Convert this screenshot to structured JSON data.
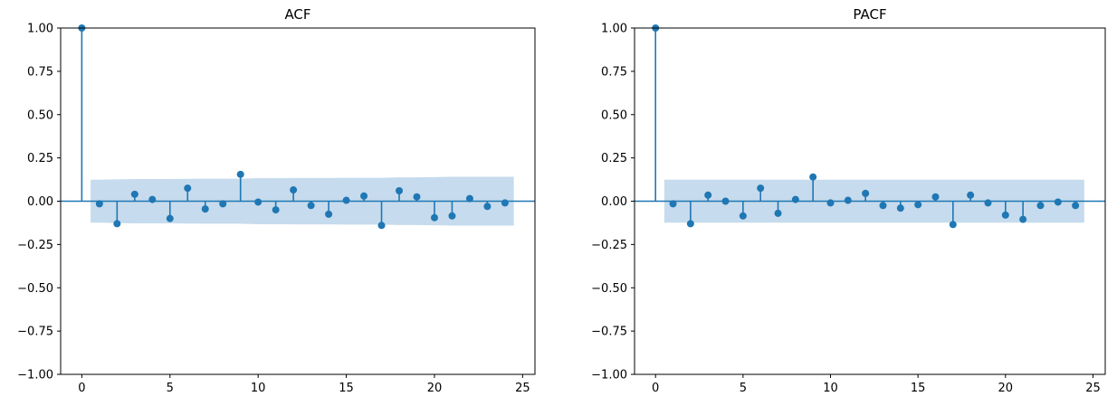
{
  "chart_data": [
    {
      "type": "stem",
      "title": "ACF",
      "xlabel": "",
      "ylabel": "",
      "xlim": [
        -1.2,
        25.7
      ],
      "ylim": [
        -1.0,
        1.0
      ],
      "xticks": [
        0,
        5,
        10,
        15,
        20,
        25
      ],
      "yticks": [
        -1.0,
        -0.75,
        -0.5,
        -0.25,
        0.0,
        0.25,
        0.5,
        0.75,
        1.0
      ],
      "ytick_labels": [
        "−1.00",
        "−0.75",
        "−0.50",
        "−0.25",
        "0.00",
        "0.25",
        "0.50",
        "0.75",
        "1.00"
      ],
      "xtick_labels": [
        "0",
        "5",
        "10",
        "15",
        "20",
        "25"
      ],
      "grid": false,
      "x": [
        0,
        1,
        2,
        3,
        4,
        5,
        6,
        7,
        8,
        9,
        10,
        11,
        12,
        13,
        14,
        15,
        16,
        17,
        18,
        19,
        20,
        21,
        22,
        23,
        24
      ],
      "values": [
        1.0,
        -0.015,
        -0.13,
        0.04,
        0.01,
        -0.1,
        0.075,
        -0.045,
        -0.015,
        0.155,
        -0.005,
        -0.05,
        0.065,
        -0.025,
        -0.075,
        0.005,
        0.03,
        -0.14,
        0.06,
        0.025,
        -0.095,
        -0.085,
        0.015,
        -0.03,
        -0.01
      ],
      "confidence_band": {
        "x": [
          0.5,
          1,
          2,
          3,
          4,
          5,
          6,
          7,
          8,
          9,
          10,
          11,
          12,
          13,
          14,
          15,
          16,
          17,
          18,
          19,
          20,
          21,
          22,
          23,
          24,
          24.5
        ],
        "upper": [
          0.124,
          0.124,
          0.126,
          0.128,
          0.128,
          0.128,
          0.129,
          0.13,
          0.13,
          0.13,
          0.133,
          0.133,
          0.134,
          0.134,
          0.134,
          0.135,
          0.135,
          0.135,
          0.138,
          0.138,
          0.139,
          0.141,
          0.141,
          0.141,
          0.141,
          0.141
        ],
        "lower": [
          -0.124,
          -0.124,
          -0.126,
          -0.128,
          -0.128,
          -0.128,
          -0.129,
          -0.13,
          -0.13,
          -0.13,
          -0.133,
          -0.133,
          -0.134,
          -0.134,
          -0.134,
          -0.135,
          -0.135,
          -0.135,
          -0.138,
          -0.138,
          -0.139,
          -0.141,
          -0.141,
          -0.141,
          -0.141,
          -0.141
        ]
      },
      "colors": {
        "stem": "#1f77b4",
        "band": "#c6dbed"
      }
    },
    {
      "type": "stem",
      "title": "PACF",
      "xlabel": "",
      "ylabel": "",
      "xlim": [
        -1.2,
        25.7
      ],
      "ylim": [
        -1.0,
        1.0
      ],
      "xticks": [
        0,
        5,
        10,
        15,
        20,
        25
      ],
      "yticks": [
        -1.0,
        -0.75,
        -0.5,
        -0.25,
        0.0,
        0.25,
        0.5,
        0.75,
        1.0
      ],
      "ytick_labels": [
        "−1.00",
        "−0.75",
        "−0.50",
        "−0.25",
        "0.00",
        "0.25",
        "0.50",
        "0.75",
        "1.00"
      ],
      "xtick_labels": [
        "0",
        "5",
        "10",
        "15",
        "20",
        "25"
      ],
      "grid": false,
      "x": [
        0,
        1,
        2,
        3,
        4,
        5,
        6,
        7,
        8,
        9,
        10,
        11,
        12,
        13,
        14,
        15,
        16,
        17,
        18,
        19,
        20,
        21,
        22,
        23,
        24
      ],
      "values": [
        1.0,
        -0.015,
        -0.13,
        0.035,
        0.0,
        -0.085,
        0.075,
        -0.07,
        0.01,
        0.14,
        -0.01,
        0.005,
        0.045,
        -0.025,
        -0.04,
        -0.02,
        0.025,
        -0.135,
        0.035,
        -0.01,
        -0.08,
        -0.105,
        -0.025,
        -0.005,
        -0.025
      ],
      "confidence_band": {
        "x": [
          0.5,
          24.5
        ],
        "upper": [
          0.124,
          0.124
        ],
        "lower": [
          -0.124,
          -0.124
        ]
      },
      "colors": {
        "stem": "#1f77b4",
        "band": "#c6dbed"
      }
    }
  ]
}
